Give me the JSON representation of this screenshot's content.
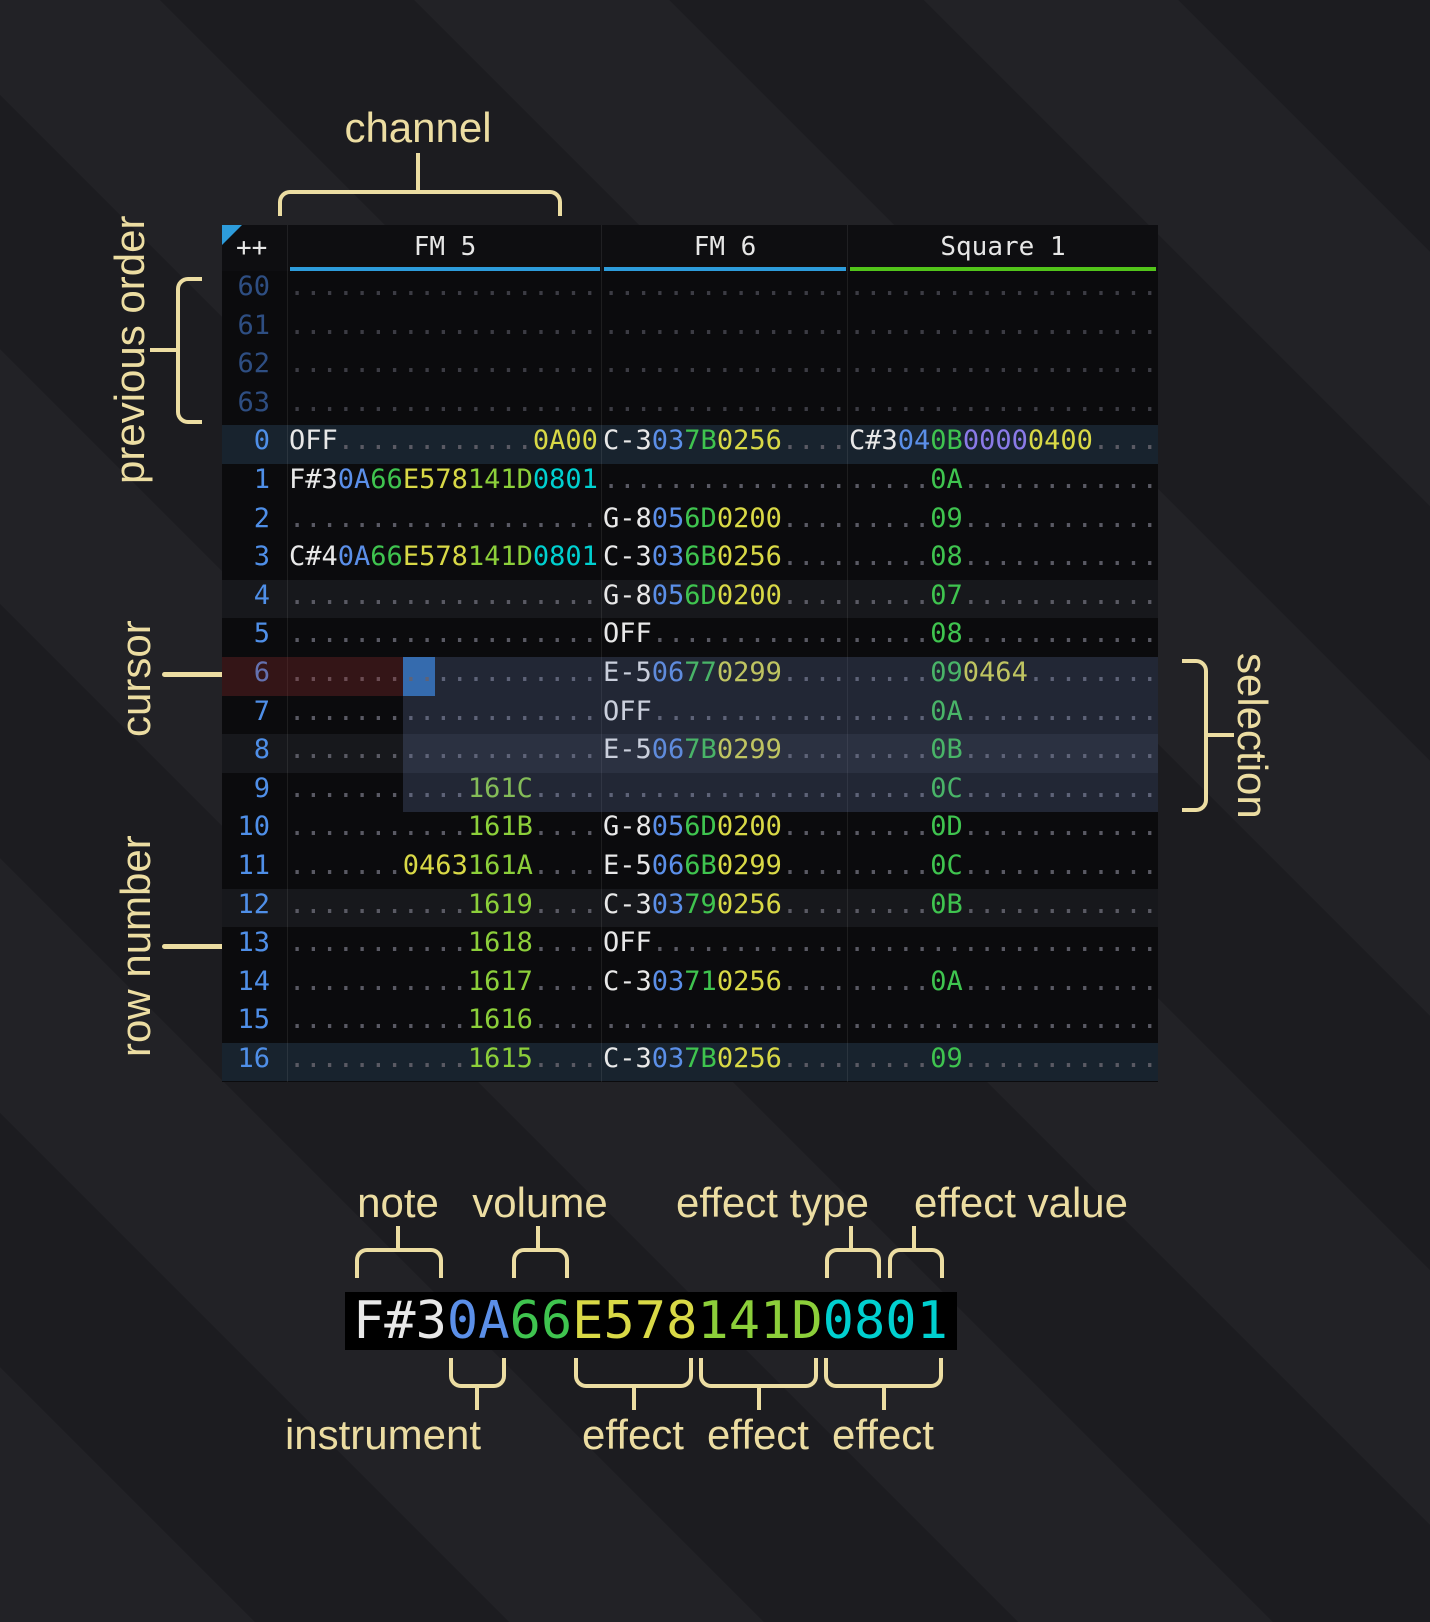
{
  "annotations": {
    "channel": "channel",
    "previous_order": "previous order",
    "cursor": "cursor",
    "selection": "selection",
    "row_number": "row number",
    "note": "note",
    "volume": "volume",
    "effect_type": "effect type",
    "effect_value": "effect value",
    "instrument": "instrument",
    "effects_bottom": [
      "effect",
      "effect",
      "effect"
    ]
  },
  "tracker": {
    "corner": "++",
    "channels": [
      {
        "name": "FM 5",
        "accent": "#2d9cdb"
      },
      {
        "name": "FM 6",
        "accent": "#2d9cdb"
      },
      {
        "name": "Square 1",
        "accent": "#52c41a"
      }
    ],
    "rows": [
      {
        "n": "60",
        "dim": true,
        "cells": [
          [
            [
              "...................",
              "dotd"
            ]
          ],
          [
            [
              "...............",
              "dotd"
            ]
          ],
          [
            [
              "...................",
              "dotd"
            ]
          ]
        ]
      },
      {
        "n": "61",
        "dim": true,
        "cells": [
          [
            [
              "...................",
              "dotd"
            ]
          ],
          [
            [
              "...............",
              "dotd"
            ]
          ],
          [
            [
              "...................",
              "dotd"
            ]
          ]
        ]
      },
      {
        "n": "62",
        "dim": true,
        "cells": [
          [
            [
              "...................",
              "dotd"
            ]
          ],
          [
            [
              "...............",
              "dotd"
            ]
          ],
          [
            [
              "...................",
              "dotd"
            ]
          ]
        ]
      },
      {
        "n": "63",
        "dim": true,
        "cells": [
          [
            [
              "...................",
              "dotd"
            ]
          ],
          [
            [
              "...............",
              "dotd"
            ]
          ],
          [
            [
              "...................",
              "dotd"
            ]
          ]
        ]
      },
      {
        "n": "0",
        "hl": "major",
        "cells": [
          [
            [
              "OFF",
              "note"
            ],
            [
              "............",
              "dot"
            ],
            [
              "0A00",
              "fxy"
            ]
          ],
          [
            [
              "C-3",
              "note"
            ],
            [
              "03",
              "ins"
            ],
            [
              "7B",
              "vol"
            ],
            [
              "0256",
              "fxy"
            ],
            [
              "....",
              "dot"
            ]
          ],
          [
            [
              "C#3",
              "note"
            ],
            [
              "04",
              "ins"
            ],
            [
              "0B",
              "vol"
            ],
            [
              "0000",
              "fxp"
            ],
            [
              "0400",
              "fxy"
            ],
            [
              "....",
              "dot"
            ]
          ]
        ]
      },
      {
        "n": "1",
        "cells": [
          [
            [
              "F#3",
              "note"
            ],
            [
              "0A",
              "ins"
            ],
            [
              "66",
              "vol"
            ],
            [
              "E578",
              "fxy"
            ],
            [
              "141D",
              "fxg"
            ],
            [
              "0801",
              "fxc"
            ]
          ],
          [
            [
              "...............",
              "dot"
            ]
          ],
          [
            [
              ".....",
              "dot"
            ],
            [
              "0A",
              "vol"
            ],
            [
              "............",
              "dot"
            ]
          ]
        ]
      },
      {
        "n": "2",
        "cells": [
          [
            [
              "...................",
              "dot"
            ]
          ],
          [
            [
              "G-8",
              "note"
            ],
            [
              "05",
              "ins"
            ],
            [
              "6D",
              "vol"
            ],
            [
              "0200",
              "fxy"
            ],
            [
              "....",
              "dot"
            ]
          ],
          [
            [
              ".....",
              "dot"
            ],
            [
              "09",
              "vol"
            ],
            [
              "............",
              "dot"
            ]
          ]
        ]
      },
      {
        "n": "3",
        "cells": [
          [
            [
              "C#4",
              "note"
            ],
            [
              "0A",
              "ins"
            ],
            [
              "66",
              "vol"
            ],
            [
              "E578",
              "fxy"
            ],
            [
              "141D",
              "fxg"
            ],
            [
              "0801",
              "fxc"
            ]
          ],
          [
            [
              "C-3",
              "note"
            ],
            [
              "03",
              "ins"
            ],
            [
              "6B",
              "vol"
            ],
            [
              "0256",
              "fxy"
            ],
            [
              "....",
              "dot"
            ]
          ],
          [
            [
              ".....",
              "dot"
            ],
            [
              "08",
              "vol"
            ],
            [
              "............",
              "dot"
            ]
          ]
        ]
      },
      {
        "n": "4",
        "hl": "minor",
        "cells": [
          [
            [
              "...................",
              "dot"
            ]
          ],
          [
            [
              "G-8",
              "note"
            ],
            [
              "05",
              "ins"
            ],
            [
              "6D",
              "vol"
            ],
            [
              "0200",
              "fxy"
            ],
            [
              "....",
              "dot"
            ]
          ],
          [
            [
              ".....",
              "dot"
            ],
            [
              "07",
              "vol"
            ],
            [
              "............",
              "dot"
            ]
          ]
        ]
      },
      {
        "n": "5",
        "cells": [
          [
            [
              "...................",
              "dot"
            ]
          ],
          [
            [
              "OFF",
              "note"
            ],
            [
              "............",
              "dot"
            ]
          ],
          [
            [
              ".....",
              "dot"
            ],
            [
              "08",
              "vol"
            ],
            [
              "............",
              "dot"
            ]
          ]
        ]
      },
      {
        "n": "6",
        "cursor": true,
        "cells": [
          [
            [
              ".......",
              "dot"
            ],
            [
              "..",
              "dot",
              "cursor-seg"
            ],
            [
              "..........",
              "dot"
            ]
          ],
          [
            [
              "E-5",
              "note"
            ],
            [
              "06",
              "ins"
            ],
            [
              "77",
              "vol"
            ],
            [
              "0299",
              "fxy"
            ],
            [
              "....",
              "dot"
            ]
          ],
          [
            [
              ".....",
              "dot"
            ],
            [
              "09",
              "vol"
            ],
            [
              "0464",
              "fxy"
            ],
            [
              "........",
              "dot"
            ]
          ]
        ]
      },
      {
        "n": "7",
        "cells": [
          [
            [
              "...................",
              "dot"
            ]
          ],
          [
            [
              "OFF",
              "note"
            ],
            [
              "............",
              "dot"
            ]
          ],
          [
            [
              ".....",
              "dot"
            ],
            [
              "0A",
              "vol"
            ],
            [
              "............",
              "dot"
            ]
          ]
        ]
      },
      {
        "n": "8",
        "hl": "minor",
        "cells": [
          [
            [
              "...................",
              "dot"
            ]
          ],
          [
            [
              "E-5",
              "note"
            ],
            [
              "06",
              "ins"
            ],
            [
              "7B",
              "vol"
            ],
            [
              "0299",
              "fxy"
            ],
            [
              "....",
              "dot"
            ]
          ],
          [
            [
              ".....",
              "dot"
            ],
            [
              "0B",
              "vol"
            ],
            [
              "............",
              "dot"
            ]
          ]
        ]
      },
      {
        "n": "9",
        "cells": [
          [
            [
              "...........",
              "dot"
            ],
            [
              "161C",
              "fxg"
            ],
            [
              "....",
              "dot"
            ]
          ],
          [
            [
              "...............",
              "dot"
            ]
          ],
          [
            [
              ".....",
              "dot"
            ],
            [
              "0C",
              "vol"
            ],
            [
              "............",
              "dot"
            ]
          ]
        ]
      },
      {
        "n": "10",
        "cells": [
          [
            [
              "...........",
              "dot"
            ],
            [
              "161B",
              "fxg"
            ],
            [
              "....",
              "dot"
            ]
          ],
          [
            [
              "G-8",
              "note"
            ],
            [
              "05",
              "ins"
            ],
            [
              "6D",
              "vol"
            ],
            [
              "0200",
              "fxy"
            ],
            [
              "....",
              "dot"
            ]
          ],
          [
            [
              ".....",
              "dot"
            ],
            [
              "0D",
              "vol"
            ],
            [
              "............",
              "dot"
            ]
          ]
        ]
      },
      {
        "n": "11",
        "cells": [
          [
            [
              ".......",
              "dot"
            ],
            [
              "0463",
              "fxy"
            ],
            [
              "161A",
              "fxg"
            ],
            [
              "....",
              "dot"
            ]
          ],
          [
            [
              "E-5",
              "note"
            ],
            [
              "06",
              "ins"
            ],
            [
              "6B",
              "vol"
            ],
            [
              "0299",
              "fxy"
            ],
            [
              "....",
              "dot"
            ]
          ],
          [
            [
              ".....",
              "dot"
            ],
            [
              "0C",
              "vol"
            ],
            [
              "............",
              "dot"
            ]
          ]
        ]
      },
      {
        "n": "12",
        "hl": "minor",
        "cells": [
          [
            [
              "...........",
              "dot"
            ],
            [
              "1619",
              "fxg"
            ],
            [
              "....",
              "dot"
            ]
          ],
          [
            [
              "C-3",
              "note"
            ],
            [
              "03",
              "ins"
            ],
            [
              "79",
              "vol"
            ],
            [
              "0256",
              "fxy"
            ],
            [
              "....",
              "dot"
            ]
          ],
          [
            [
              ".....",
              "dot"
            ],
            [
              "0B",
              "vol"
            ],
            [
              "............",
              "dot"
            ]
          ]
        ]
      },
      {
        "n": "13",
        "cells": [
          [
            [
              "...........",
              "dot"
            ],
            [
              "1618",
              "fxg"
            ],
            [
              "....",
              "dot"
            ]
          ],
          [
            [
              "OFF",
              "note"
            ],
            [
              "............",
              "dot"
            ]
          ],
          [
            [
              "...................",
              "dot"
            ]
          ]
        ]
      },
      {
        "n": "14",
        "cells": [
          [
            [
              "...........",
              "dot"
            ],
            [
              "1617",
              "fxg"
            ],
            [
              "....",
              "dot"
            ]
          ],
          [
            [
              "C-3",
              "note"
            ],
            [
              "03",
              "ins"
            ],
            [
              "71",
              "vol"
            ],
            [
              "0256",
              "fxy"
            ],
            [
              "....",
              "dot"
            ]
          ],
          [
            [
              ".....",
              "dot"
            ],
            [
              "0A",
              "vol"
            ],
            [
              "............",
              "dot"
            ]
          ]
        ]
      },
      {
        "n": "15",
        "cells": [
          [
            [
              "...........",
              "dot"
            ],
            [
              "1616",
              "fxg"
            ],
            [
              "....",
              "dot"
            ]
          ],
          [
            [
              "...............",
              "dot"
            ]
          ],
          [
            [
              "...................",
              "dot"
            ]
          ]
        ]
      },
      {
        "n": "16",
        "hl": "major",
        "cells": [
          [
            [
              "...........",
              "dot"
            ],
            [
              "1615",
              "fxg"
            ],
            [
              "....",
              "dot"
            ]
          ],
          [
            [
              "C-3",
              "note"
            ],
            [
              "03",
              "ins"
            ],
            [
              "7B",
              "vol"
            ],
            [
              "0256",
              "fxy"
            ],
            [
              "....",
              "dot"
            ]
          ],
          [
            [
              ".....",
              "dot"
            ],
            [
              "09",
              "vol"
            ],
            [
              "............",
              "dot"
            ]
          ]
        ]
      }
    ]
  },
  "legend": {
    "segments": [
      {
        "t": "F#3",
        "c": "note"
      },
      {
        "t": "0A",
        "c": "ins"
      },
      {
        "t": "66",
        "c": "vol"
      },
      {
        "t": "E5",
        "c": "fxy"
      },
      {
        "t": "78",
        "c": "fxy"
      },
      {
        "t": "14",
        "c": "fxg"
      },
      {
        "t": "1D",
        "c": "fxg"
      },
      {
        "t": "08",
        "c": "fxc"
      },
      {
        "t": "01",
        "c": "fxc"
      }
    ]
  },
  "colors": {
    "accent_blue": "#2d9cdb",
    "accent_green": "#52c41a",
    "note": "#e8e8e8",
    "ins": "#5b8fe8",
    "vol": "#3fc44f",
    "fxy": "#d9d946",
    "fxg": "#8ccf3a",
    "fxc": "#00d0d0",
    "fxp": "#8a7ae8",
    "dot": "#5a5a64",
    "dotd": "#3c3c44",
    "rownum": "#4f8fe8",
    "rownum_dim": "#2e4e82",
    "annotation": "#ecdda2",
    "hl_major": "#18232e",
    "hl_minor": "#17181c",
    "selection_bg": "rgba(110,130,185,0.24)",
    "cursor_bg": "#2465ab",
    "cursor_row_bg": "rgba(150,45,45,0.30)"
  }
}
